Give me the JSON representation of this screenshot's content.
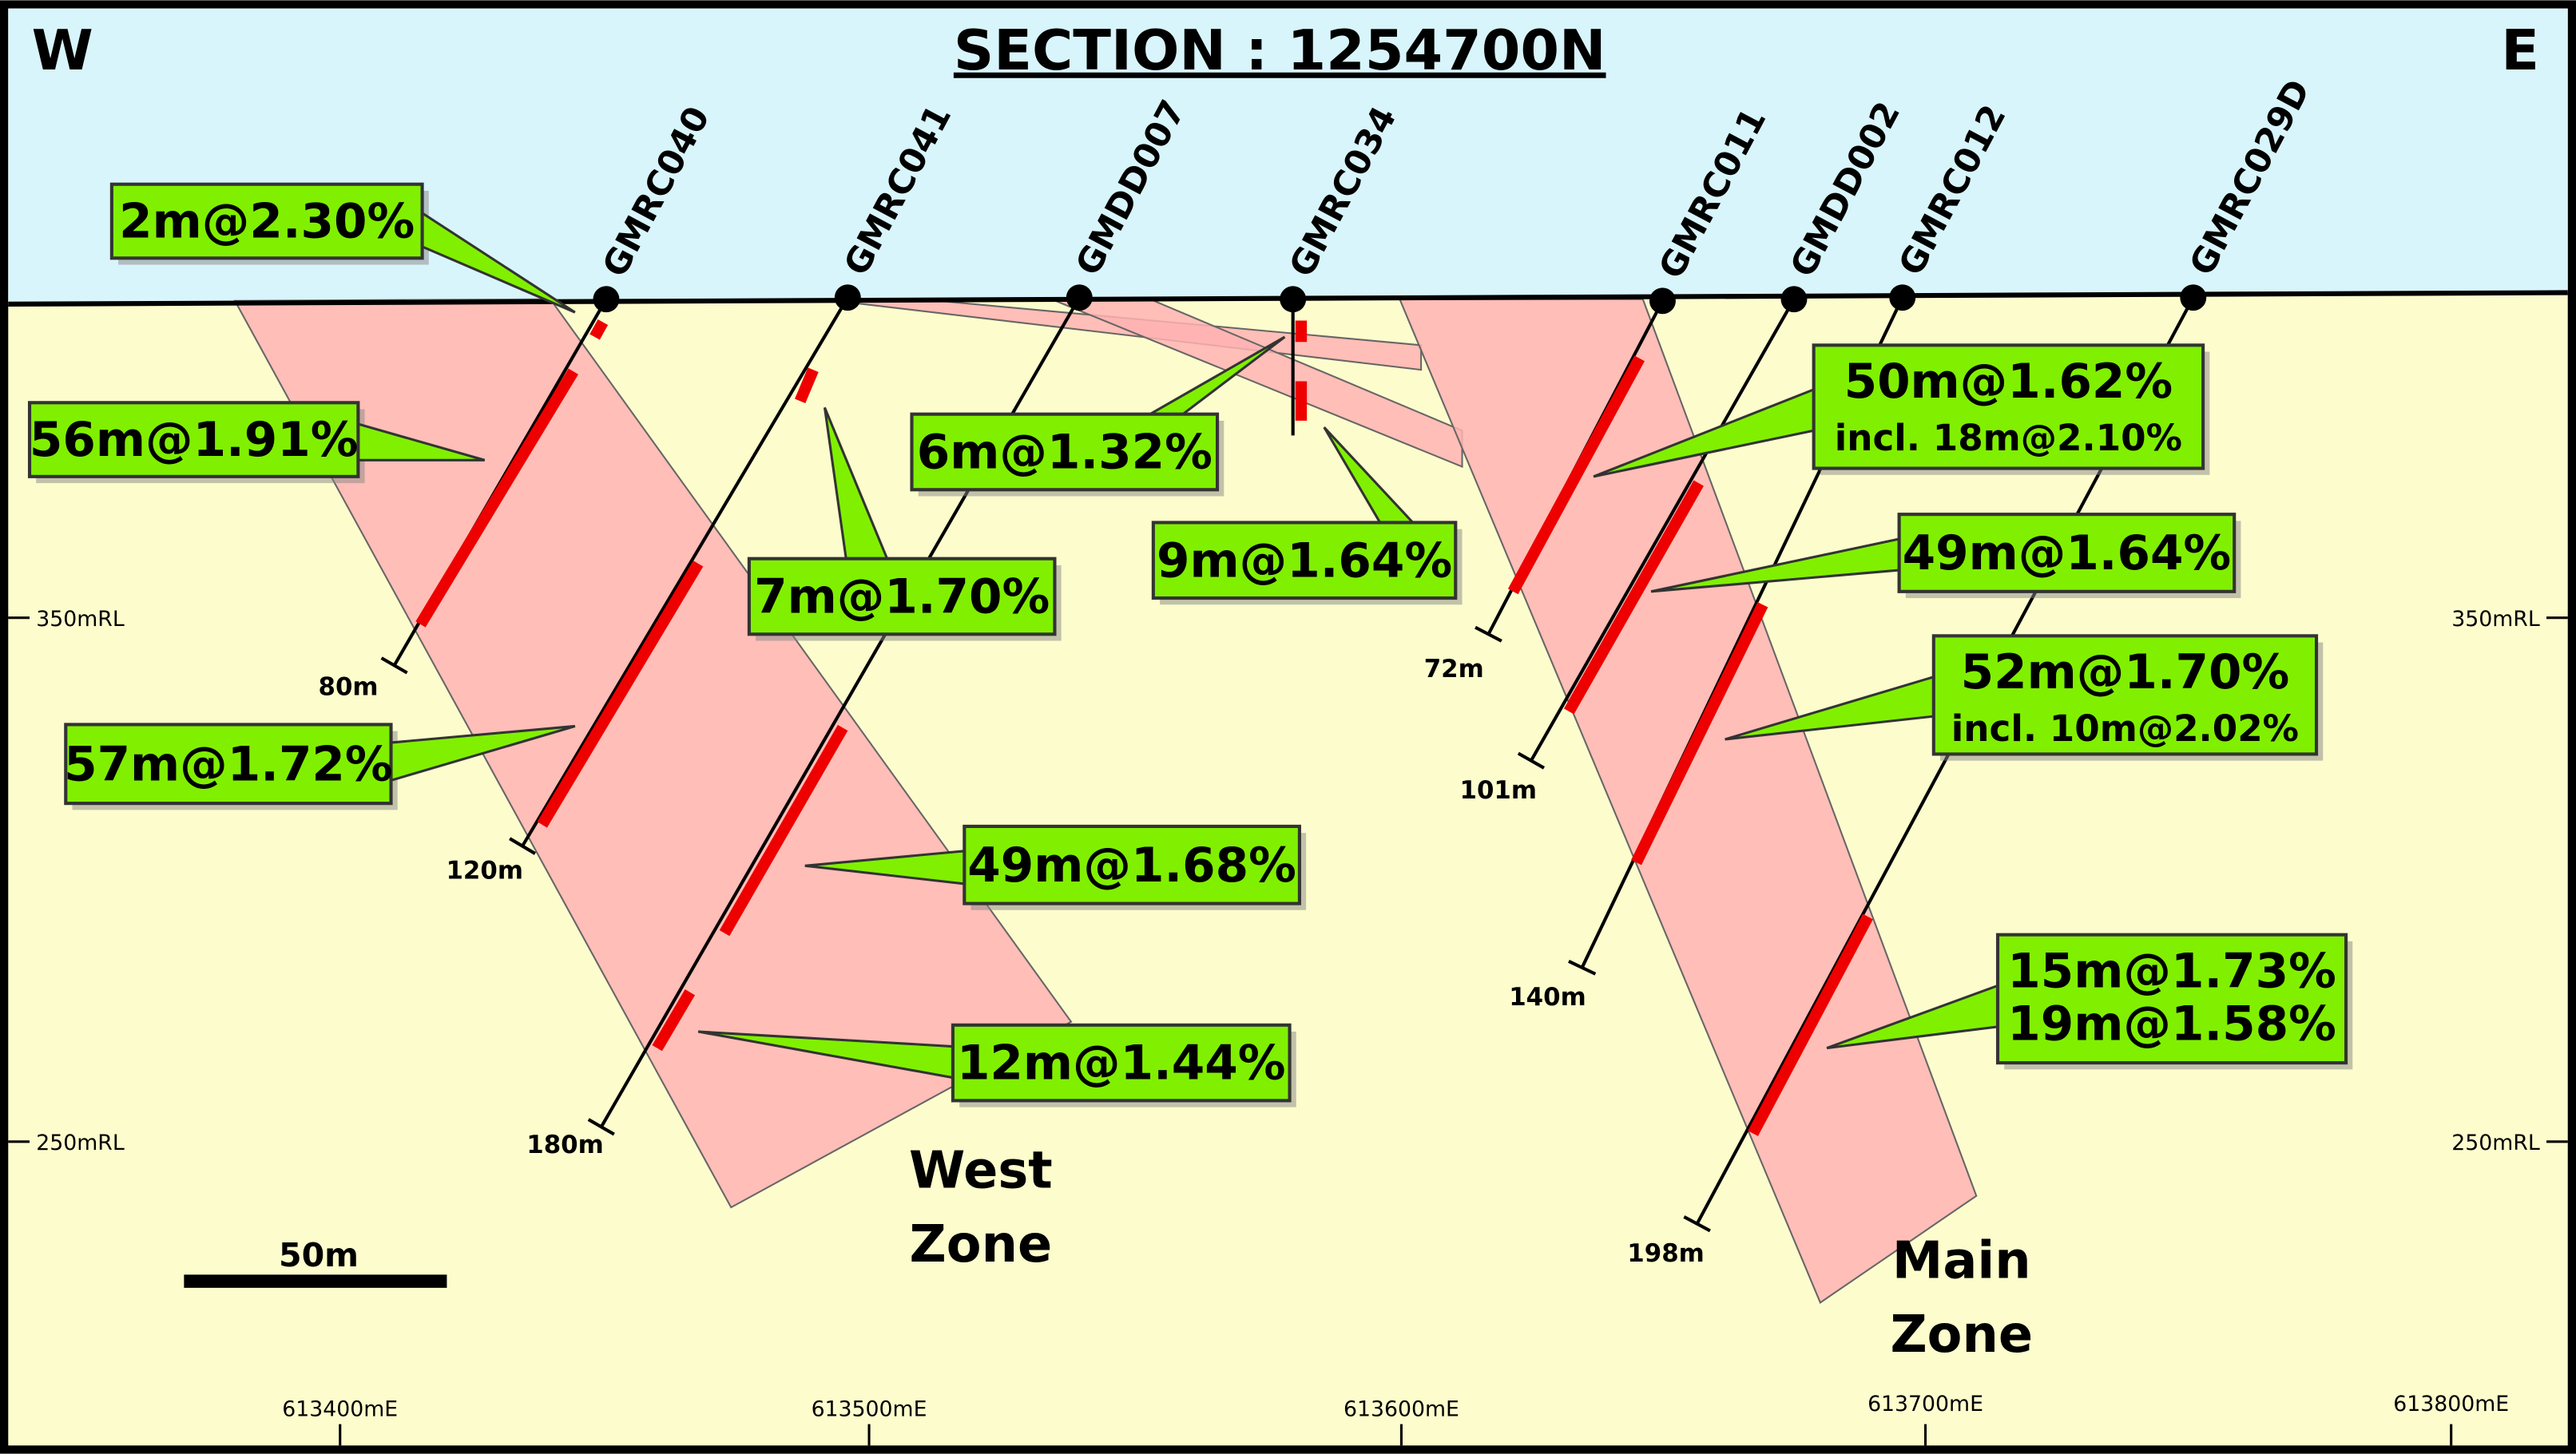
{
  "header": {
    "title": "SECTION : 1254700N",
    "west": "W",
    "east": "E"
  },
  "holes": [
    {
      "id": "GMRC040",
      "depth": "80m"
    },
    {
      "id": "GMRC041",
      "depth": "120m"
    },
    {
      "id": "GMDD007",
      "depth": "180m"
    },
    {
      "id": "GMRC034"
    },
    {
      "id": "GMRC011",
      "depth": "72m"
    },
    {
      "id": "GMDD002",
      "depth": "101m"
    },
    {
      "id": "GMRC012",
      "depth": "140m"
    },
    {
      "id": "GMRC029D",
      "depth": "198m"
    }
  ],
  "intercepts": [
    {
      "lines": [
        "2m@2.30%"
      ]
    },
    {
      "lines": [
        "56m@1.91%"
      ]
    },
    {
      "lines": [
        "57m@1.72%"
      ]
    },
    {
      "lines": [
        "7m@1.70%"
      ]
    },
    {
      "lines": [
        "6m@1.32%"
      ]
    },
    {
      "lines": [
        "9m@1.64%"
      ]
    },
    {
      "lines": [
        "49m@1.68%"
      ]
    },
    {
      "lines": [
        "12m@1.44%"
      ]
    },
    {
      "lines": [
        "50m@1.62%",
        "incl. 18m@2.10%"
      ]
    },
    {
      "lines": [
        "49m@1.64%"
      ]
    },
    {
      "lines": [
        "52m@1.70%",
        "incl. 10m@2.02%"
      ]
    },
    {
      "lines": [
        "15m@1.73%",
        "19m@1.58%"
      ]
    }
  ],
  "axes": {
    "elevation": [
      "350mRL",
      "250mRL"
    ],
    "easting": [
      "613400mE",
      "613500mE",
      "613600mE",
      "613700mE",
      "613800mE"
    ]
  },
  "zones": [
    {
      "lines": [
        "West",
        "Zone"
      ]
    },
    {
      "lines": [
        "Main",
        "Zone"
      ]
    }
  ],
  "scale_bar": "50m"
}
